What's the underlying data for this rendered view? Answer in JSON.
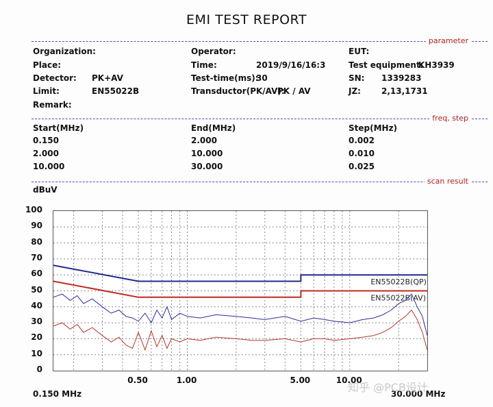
{
  "title": "EMI TEST REPORT",
  "sections": {
    "parameter": "parameter",
    "freq_step": "freq, step",
    "scan_result": "scan result"
  },
  "params": {
    "organization_label": "Organization:",
    "place_label": "Place:",
    "detector_label": "Detector:",
    "detector_value": "PK+AV",
    "limit_label": "Limit:",
    "limit_value": "EN55022B",
    "remark_label": "Remark:",
    "operator_label": "Operator:",
    "time_label": "Time:",
    "time_value": "2019/9/16/16:3",
    "testtime_label": "Test-time(ms):",
    "testtime_value": "30",
    "transductor_label": "Transductor(PK/AV):",
    "transductor_value": "PK  /  AV",
    "eut_label": "EUT:",
    "equipment_label": "Test equipment:",
    "equipment_value": "KH3939",
    "sn_label": "SN:",
    "sn_value": "1339283",
    "jz_label": "JZ:",
    "jz_value": "2,13,1731"
  },
  "freq_table": {
    "headers": [
      "Start(MHz)",
      "End(MHz)",
      "Step(MHz)"
    ],
    "rows": [
      [
        "0.150",
        "2.000",
        "0.002"
      ],
      [
        "2.000",
        "10.000",
        "0.010"
      ],
      [
        "10.000",
        "30.000",
        "0.025"
      ]
    ]
  },
  "watermark": "知乎 @PCB设计",
  "colors": {
    "qp_limit": "#1f2a8a",
    "av_limit": "#c0281e",
    "pk_trace": "#2b2b9a",
    "av_trace": "#b3362a",
    "grid": "#888888"
  },
  "chart_data": {
    "type": "line",
    "ylabel": "dBuV",
    "xscale": "log",
    "xlim": [
      0.15,
      30
    ],
    "ylim": [
      0,
      100
    ],
    "yticks": [
      0,
      10,
      20,
      30,
      40,
      50,
      60,
      70,
      80,
      90,
      100
    ],
    "xtick_labels": [
      {
        "x": 0.5,
        "label": "0.50"
      },
      {
        "x": 1.0,
        "label": "1.00"
      },
      {
        "x": 5.0,
        "label": "5.00"
      },
      {
        "x": 10.0,
        "label": "10.00"
      }
    ],
    "xmin_label": "0.150 MHz",
    "xmax_label": "30.000 MHz",
    "grid": true,
    "series": [
      {
        "name": "EN55022B(QP)",
        "role": "limit",
        "x": [
          0.15,
          0.5,
          5.0,
          5.0,
          30.0
        ],
        "y": [
          66,
          56,
          56,
          60,
          60
        ]
      },
      {
        "name": "EN55022B(AV)",
        "role": "limit",
        "x": [
          0.15,
          0.5,
          5.0,
          5.0,
          30.0
        ],
        "y": [
          56,
          46,
          46,
          50,
          50
        ]
      },
      {
        "role": "peak",
        "x": [
          0.15,
          0.17,
          0.19,
          0.21,
          0.23,
          0.26,
          0.3,
          0.34,
          0.38,
          0.42,
          0.46,
          0.5,
          0.55,
          0.6,
          0.65,
          0.7,
          0.75,
          0.8,
          0.9,
          1.0,
          1.2,
          1.5,
          2.0,
          2.5,
          3.0,
          4.0,
          5.0,
          6.0,
          7.0,
          8.0,
          10.0,
          12.0,
          14.0,
          16.0,
          18.0,
          20.0,
          22.0,
          24.0,
          26.0,
          28.0,
          30.0
        ],
        "y": [
          46,
          48,
          44,
          47,
          42,
          45,
          40,
          36,
          38,
          34,
          33,
          31,
          36,
          30,
          38,
          33,
          40,
          32,
          36,
          34,
          33,
          35,
          34,
          33,
          32,
          34,
          31,
          33,
          32,
          31,
          30,
          32,
          33,
          35,
          38,
          42,
          44,
          48,
          40,
          34,
          22
        ]
      },
      {
        "role": "average",
        "x": [
          0.15,
          0.17,
          0.19,
          0.21,
          0.23,
          0.26,
          0.3,
          0.34,
          0.38,
          0.42,
          0.46,
          0.5,
          0.55,
          0.6,
          0.65,
          0.7,
          0.75,
          0.8,
          0.9,
          1.0,
          1.2,
          1.5,
          2.0,
          2.5,
          3.0,
          4.0,
          5.0,
          6.0,
          7.0,
          8.0,
          10.0,
          12.0,
          14.0,
          16.0,
          18.0,
          20.0,
          22.0,
          24.0,
          26.0,
          28.0,
          30.0
        ],
        "y": [
          28,
          30,
          26,
          29,
          24,
          27,
          22,
          18,
          21,
          16,
          14,
          24,
          13,
          25,
          15,
          22,
          14,
          20,
          18,
          20,
          19,
          21,
          20,
          19,
          19,
          20,
          18,
          20,
          20,
          19,
          20,
          21,
          22,
          24,
          27,
          31,
          34,
          38,
          32,
          24,
          13
        ]
      }
    ]
  }
}
